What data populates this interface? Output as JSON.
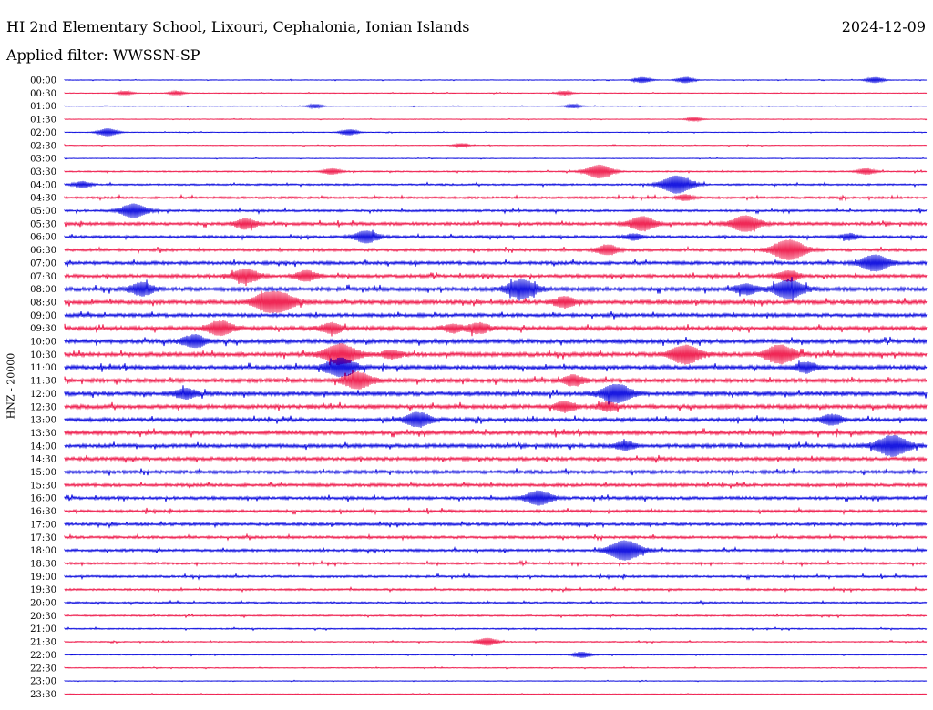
{
  "header": {
    "title": "HI 2nd Elementary School, Lixouri, Cephalonia, Ionian Islands",
    "date": "2024-12-09",
    "filter": "Applied filter: WWSSN-SP"
  },
  "colors": {
    "even": "#0000dd",
    "odd": "#ee1144"
  },
  "chart_data": {
    "type": "line",
    "ylabel": "HNZ - 20000",
    "row_labels": [
      "00:00",
      "00:30",
      "01:00",
      "01:30",
      "02:00",
      "02:30",
      "03:00",
      "03:30",
      "04:00",
      "04:30",
      "05:00",
      "05:30",
      "06:00",
      "06:30",
      "07:00",
      "07:30",
      "08:00",
      "08:30",
      "09:00",
      "09:30",
      "10:00",
      "10:30",
      "11:00",
      "11:30",
      "12:00",
      "12:30",
      "13:00",
      "13:30",
      "14:00",
      "14:30",
      "15:00",
      "15:30",
      "16:00",
      "16:30",
      "17:00",
      "17:30",
      "18:00",
      "18:30",
      "19:00",
      "19:30",
      "20:00",
      "20:30",
      "21:00",
      "21:30",
      "22:00",
      "22:30",
      "23:00",
      "23:30"
    ],
    "noise_level": [
      0.3,
      0.3,
      0.3,
      0.3,
      0.3,
      0.3,
      0.3,
      0.6,
      0.8,
      1.0,
      1.0,
      1.4,
      1.2,
      1.3,
      1.5,
      1.5,
      1.8,
      1.8,
      1.6,
      1.8,
      1.9,
      1.9,
      1.8,
      1.8,
      1.9,
      1.8,
      1.7,
      1.8,
      1.7,
      1.6,
      1.5,
      1.4,
      1.4,
      1.3,
      1.3,
      1.2,
      1.2,
      1.0,
      1.0,
      0.9,
      0.8,
      0.7,
      0.6,
      0.5,
      0.4,
      0.4,
      0.3,
      0.3
    ],
    "events": [
      {
        "row": 0,
        "x": 0.67,
        "amp": 3
      },
      {
        "row": 0,
        "x": 0.72,
        "amp": 3
      },
      {
        "row": 0,
        "x": 0.94,
        "amp": 3
      },
      {
        "row": 1,
        "x": 0.07,
        "amp": 2
      },
      {
        "row": 1,
        "x": 0.13,
        "amp": 2
      },
      {
        "row": 1,
        "x": 0.58,
        "amp": 2
      },
      {
        "row": 2,
        "x": 0.29,
        "amp": 2
      },
      {
        "row": 2,
        "x": 0.59,
        "amp": 2
      },
      {
        "row": 3,
        "x": 0.73,
        "amp": 2
      },
      {
        "row": 4,
        "x": 0.05,
        "amp": 4
      },
      {
        "row": 4,
        "x": 0.33,
        "amp": 3
      },
      {
        "row": 5,
        "x": 0.46,
        "amp": 2
      },
      {
        "row": 7,
        "x": 0.31,
        "amp": 3
      },
      {
        "row": 7,
        "x": 0.62,
        "amp": 7
      },
      {
        "row": 7,
        "x": 0.93,
        "amp": 3
      },
      {
        "row": 8,
        "x": 0.02,
        "amp": 3
      },
      {
        "row": 8,
        "x": 0.71,
        "amp": 9
      },
      {
        "row": 9,
        "x": 0.72,
        "amp": 3
      },
      {
        "row": 10,
        "x": 0.08,
        "amp": 7
      },
      {
        "row": 11,
        "x": 0.21,
        "amp": 5
      },
      {
        "row": 11,
        "x": 0.67,
        "amp": 7
      },
      {
        "row": 11,
        "x": 0.79,
        "amp": 8
      },
      {
        "row": 12,
        "x": 0.35,
        "amp": 6
      },
      {
        "row": 12,
        "x": 0.66,
        "amp": 3
      },
      {
        "row": 12,
        "x": 0.91,
        "amp": 3
      },
      {
        "row": 13,
        "x": 0.63,
        "amp": 5
      },
      {
        "row": 13,
        "x": 0.84,
        "amp": 10
      },
      {
        "row": 14,
        "x": 0.94,
        "amp": 8
      },
      {
        "row": 15,
        "x": 0.21,
        "amp": 7
      },
      {
        "row": 15,
        "x": 0.28,
        "amp": 5
      },
      {
        "row": 15,
        "x": 0.84,
        "amp": 5
      },
      {
        "row": 16,
        "x": 0.09,
        "amp": 6
      },
      {
        "row": 16,
        "x": 0.53,
        "amp": 9
      },
      {
        "row": 16,
        "x": 0.79,
        "amp": 5
      },
      {
        "row": 16,
        "x": 0.84,
        "amp": 9
      },
      {
        "row": 17,
        "x": 0.23,
        "amp": 6
      },
      {
        "row": 17,
        "x": 0.25,
        "amp": 9
      },
      {
        "row": 17,
        "x": 0.58,
        "amp": 5
      },
      {
        "row": 19,
        "x": 0.18,
        "amp": 7
      },
      {
        "row": 19,
        "x": 0.31,
        "amp": 5
      },
      {
        "row": 19,
        "x": 0.45,
        "amp": 4
      },
      {
        "row": 19,
        "x": 0.48,
        "amp": 5
      },
      {
        "row": 20,
        "x": 0.15,
        "amp": 6
      },
      {
        "row": 21,
        "x": 0.32,
        "amp": 10
      },
      {
        "row": 21,
        "x": 0.38,
        "amp": 4
      },
      {
        "row": 21,
        "x": 0.72,
        "amp": 9
      },
      {
        "row": 21,
        "x": 0.83,
        "amp": 9
      },
      {
        "row": 22,
        "x": 0.32,
        "amp": 9
      },
      {
        "row": 22,
        "x": 0.86,
        "amp": 5
      },
      {
        "row": 23,
        "x": 0.34,
        "amp": 8
      },
      {
        "row": 23,
        "x": 0.59,
        "amp": 5
      },
      {
        "row": 24,
        "x": 0.14,
        "amp": 5
      },
      {
        "row": 24,
        "x": 0.64,
        "amp": 9
      },
      {
        "row": 25,
        "x": 0.58,
        "amp": 5
      },
      {
        "row": 25,
        "x": 0.63,
        "amp": 4
      },
      {
        "row": 26,
        "x": 0.41,
        "amp": 7
      },
      {
        "row": 26,
        "x": 0.89,
        "amp": 5
      },
      {
        "row": 28,
        "x": 0.65,
        "amp": 4
      },
      {
        "row": 28,
        "x": 0.96,
        "amp": 10
      },
      {
        "row": 32,
        "x": 0.55,
        "amp": 7
      },
      {
        "row": 36,
        "x": 0.65,
        "amp": 10
      },
      {
        "row": 43,
        "x": 0.49,
        "amp": 4
      },
      {
        "row": 44,
        "x": 0.6,
        "amp": 3
      }
    ]
  }
}
